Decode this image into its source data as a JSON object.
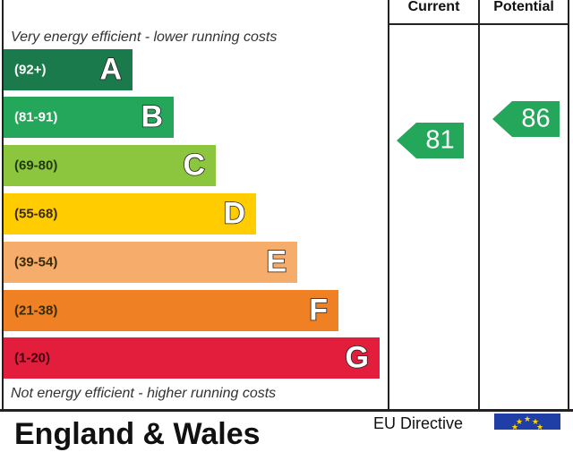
{
  "header": {
    "current_label": "Current",
    "potential_label": "Potential"
  },
  "captions": {
    "top": "Very energy efficient - lower running costs",
    "bottom": "Not energy efficient - higher running costs"
  },
  "bands": [
    {
      "range": "(92+)",
      "letter": "A",
      "color": "#1a7a4c"
    },
    {
      "range": "(81-91)",
      "letter": "B",
      "color": "#25a75b"
    },
    {
      "range": "(69-80)",
      "letter": "C",
      "color": "#8cc63f"
    },
    {
      "range": "(55-68)",
      "letter": "D",
      "color": "#ffcc00"
    },
    {
      "range": "(39-54)",
      "letter": "E",
      "color": "#f6ac6b"
    },
    {
      "range": "(21-38)",
      "letter": "F",
      "color": "#ef8023"
    },
    {
      "range": "(1-20)",
      "letter": "G",
      "color": "#e31d3c"
    }
  ],
  "ratings": {
    "current": {
      "value": "81",
      "color": "#25a75b"
    },
    "potential": {
      "value": "86",
      "color": "#25a75b"
    }
  },
  "footer": {
    "title": "England & Wales",
    "eu_label": "EU Directive",
    "flag_icon": "eu-flag-icon"
  }
}
